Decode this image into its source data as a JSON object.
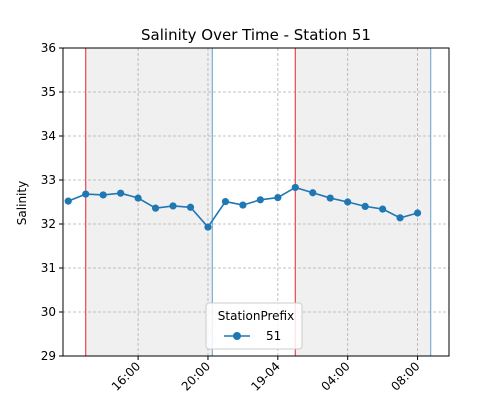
{
  "chart_data": {
    "type": "line",
    "title": "Salinity Over Time - Station 51",
    "xlabel": "",
    "ylabel": "Salinity",
    "ylim": [
      29,
      36
    ],
    "yticks": [
      29,
      30,
      31,
      32,
      33,
      34,
      35,
      36
    ],
    "xlim": [
      "2024-04-18 11:42",
      "2024-04-19 09:48"
    ],
    "xticks": [
      {
        "x": "2024-04-18 16:00",
        "label": "16:00"
      },
      {
        "x": "2024-04-18 20:00",
        "label": "20:00"
      },
      {
        "x": "2024-04-19 00:00",
        "label": "19-04"
      },
      {
        "x": "2024-04-19 04:00",
        "label": "04:00"
      },
      {
        "x": "2024-04-19 08:00",
        "label": "08:00"
      }
    ],
    "grid": true,
    "legend": {
      "title": "StationPrefix",
      "position": "lower-center"
    },
    "series": [
      {
        "name": "51",
        "color": "#1f77b4",
        "points": [
          {
            "x": "2024-04-18 12:00",
            "y": 32.52
          },
          {
            "x": "2024-04-18 13:00",
            "y": 32.68
          },
          {
            "x": "2024-04-18 14:00",
            "y": 32.66
          },
          {
            "x": "2024-04-18 15:00",
            "y": 32.7
          },
          {
            "x": "2024-04-18 16:00",
            "y": 32.59
          },
          {
            "x": "2024-04-18 17:00",
            "y": 32.36
          },
          {
            "x": "2024-04-18 18:00",
            "y": 32.41
          },
          {
            "x": "2024-04-18 19:00",
            "y": 32.38
          },
          {
            "x": "2024-04-18 20:00",
            "y": 31.93
          },
          {
            "x": "2024-04-18 21:00",
            "y": 32.51
          },
          {
            "x": "2024-04-18 22:00",
            "y": 32.43
          },
          {
            "x": "2024-04-18 23:00",
            "y": 32.55
          },
          {
            "x": "2024-04-19 00:00",
            "y": 32.6
          },
          {
            "x": "2024-04-19 01:00",
            "y": 32.83
          },
          {
            "x": "2024-04-19 02:00",
            "y": 32.71
          },
          {
            "x": "2024-04-19 03:00",
            "y": 32.59
          },
          {
            "x": "2024-04-19 04:00",
            "y": 32.5
          },
          {
            "x": "2024-04-19 05:00",
            "y": 32.4
          },
          {
            "x": "2024-04-19 06:00",
            "y": 32.34
          },
          {
            "x": "2024-04-19 07:00",
            "y": 32.14
          },
          {
            "x": "2024-04-19 08:00",
            "y": 32.25
          }
        ]
      }
    ],
    "shaded_periods": [
      {
        "start": "2024-04-18 13:00",
        "end": "2024-04-18 20:15",
        "color": "#f0f0f0"
      },
      {
        "start": "2024-04-19 01:00",
        "end": "2024-04-19 08:45",
        "color": "#f0f0f0"
      }
    ],
    "vertical_lines": [
      {
        "x": "2024-04-18 13:00",
        "color": "#e8474c"
      },
      {
        "x": "2024-04-18 20:15",
        "color": "#7aaed6"
      },
      {
        "x": "2024-04-19 01:00",
        "color": "#e8474c"
      },
      {
        "x": "2024-04-19 08:45",
        "color": "#7aaed6"
      }
    ]
  }
}
